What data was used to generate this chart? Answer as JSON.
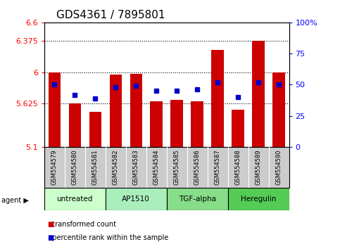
{
  "title": "GDS4361 / 7895801",
  "samples": [
    "GSM554579",
    "GSM554580",
    "GSM554581",
    "GSM554582",
    "GSM554583",
    "GSM554584",
    "GSM554585",
    "GSM554586",
    "GSM554587",
    "GSM554588",
    "GSM554589",
    "GSM554590"
  ],
  "red_values": [
    6.0,
    5.62,
    5.52,
    5.97,
    5.98,
    5.65,
    5.67,
    5.65,
    6.27,
    5.55,
    6.38,
    6.0
  ],
  "blue_values": [
    50,
    42,
    39,
    48,
    49,
    45,
    45,
    46,
    52,
    40,
    52,
    50
  ],
  "ylim_left": [
    5.1,
    6.6
  ],
  "ylim_right": [
    0,
    100
  ],
  "yticks_left": [
    5.1,
    5.625,
    6.0,
    6.375,
    6.6
  ],
  "yticks_right": [
    0,
    25,
    50,
    75,
    100
  ],
  "ytick_labels_left": [
    "5.1",
    "5.625",
    "6",
    "6.375",
    "6.6"
  ],
  "ytick_labels_right": [
    "0",
    "25",
    "50",
    "75",
    "100%"
  ],
  "grid_lines": [
    5.625,
    6.0,
    6.375
  ],
  "bar_color": "#cc0000",
  "dot_color": "#0000cc",
  "bar_bottom": 5.1,
  "agents": [
    {
      "label": "untreated",
      "start": 0,
      "end": 3
    },
    {
      "label": "AP1510",
      "start": 3,
      "end": 6
    },
    {
      "label": "TGF-alpha",
      "start": 6,
      "end": 9
    },
    {
      "label": "Heregulin",
      "start": 9,
      "end": 12
    }
  ],
  "agent_colors": [
    "#ccffcc",
    "#aaeebb",
    "#88dd88",
    "#55cc55"
  ],
  "agent_label": "agent",
  "legend_items": [
    {
      "color": "#cc0000",
      "label": "transformed count"
    },
    {
      "color": "#0000cc",
      "label": "percentile rank within the sample"
    }
  ],
  "background_color": "#ffffff",
  "plot_bg_color": "#ffffff",
  "sample_area_bg": "#cccccc",
  "bar_width": 0.6,
  "title_fontsize": 11,
  "tick_fontsize": 8,
  "label_fontsize": 7
}
